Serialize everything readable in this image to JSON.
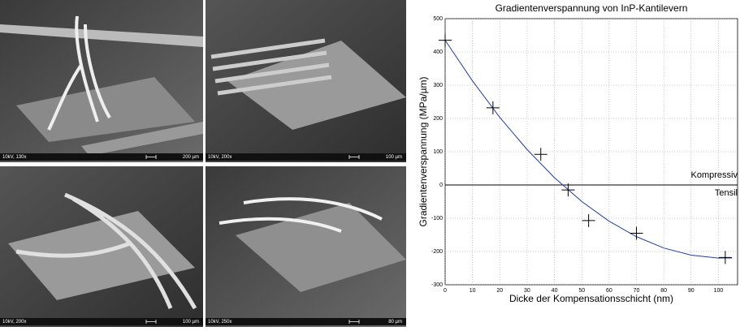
{
  "images": [
    {
      "caption": "10kV, 130x",
      "scale": "200 µm"
    },
    {
      "caption": "10kV, 200x",
      "scale": "100 µm"
    },
    {
      "caption": "10kV, 200x",
      "scale": "100 µm"
    },
    {
      "caption": "10kV, 250x",
      "scale": "80 µm"
    }
  ],
  "chart_data": {
    "type": "scatter",
    "title": "Gradientenverspannung von InP-Kantilevern",
    "x_label": "Dicke der Kompensationsschicht (nm)",
    "y_label": "Gradientenverspannung (MPa/µm)",
    "annotations": [
      "Kompressiv",
      "Tensil"
    ],
    "points": {
      "color": "#000000",
      "x": [
        0,
        17.5,
        35,
        45,
        52.5,
        70,
        102.5
      ],
      "values": [
        435,
        232,
        92,
        -15,
        -107,
        -145,
        -218
      ]
    },
    "fit": {
      "color": "#1f3f9f",
      "x": [
        0,
        10,
        20,
        30,
        40,
        50,
        60,
        70,
        80,
        90,
        100,
        105
      ],
      "values": [
        435,
        312.9,
        203.3,
        106.4,
        22,
        -49.8,
        -108.9,
        -155.5,
        -189.5,
        -210.9,
        -219.7,
        -219.4
      ]
    },
    "xlim": [
      0,
      107
    ],
    "xticks": [
      0,
      10,
      20,
      30,
      40,
      50,
      60,
      70,
      80,
      90,
      100
    ],
    "ylim": [
      -300,
      500
    ],
    "yticks": [
      -300,
      -200,
      -100,
      0,
      100,
      200,
      300,
      400,
      500
    ],
    "grid": true
  }
}
